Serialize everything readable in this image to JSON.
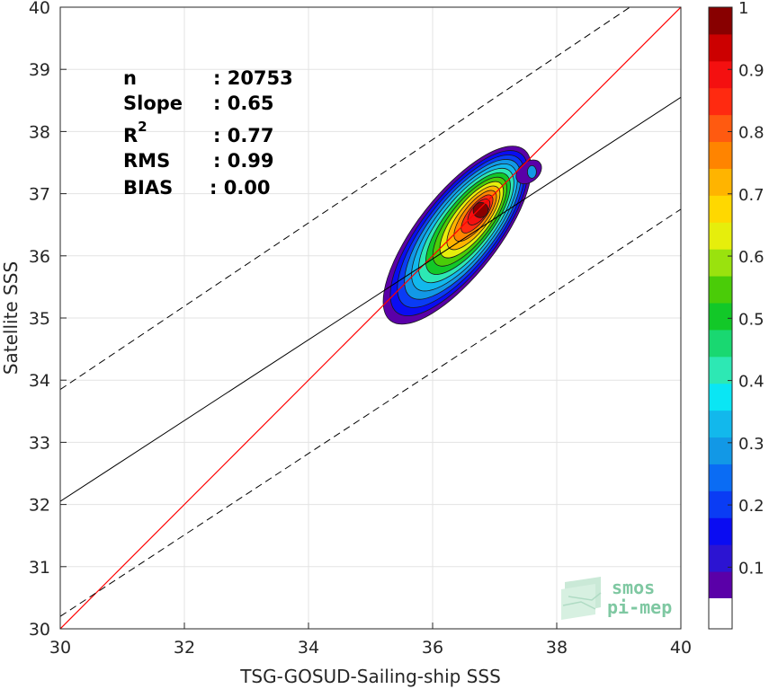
{
  "chart_data": {
    "type": "heatmap",
    "xlabel": "TSG-GOSUD-Sailing-ship SSS",
    "ylabel": "Satellite SSS",
    "xlim": [
      30,
      40
    ],
    "ylim": [
      30,
      40
    ],
    "xticks": [
      30,
      32,
      34,
      36,
      38,
      40
    ],
    "yticks": [
      30,
      31,
      32,
      33,
      34,
      35,
      36,
      37,
      38,
      39,
      40
    ],
    "grid": true,
    "stats": {
      "n": {
        "label": "n",
        "value": ": 20753"
      },
      "slope": {
        "label": "Slope",
        "value": ": 0.65"
      },
      "r2": {
        "label": "R",
        "sup": "2",
        "value": ": 0.77"
      },
      "rms": {
        "label": "RMS",
        "value": ": 0.99"
      },
      "bias": {
        "label": "BIAS",
        "value": ": 0.00"
      }
    },
    "density_center": [
      36.6,
      36.55
    ],
    "density_contour_levels": [
      0.05,
      0.1,
      0.2,
      0.3,
      0.4,
      0.5,
      0.6,
      0.7,
      0.8,
      0.9
    ],
    "lines": {
      "identity": {
        "slope": 1,
        "intercept": 0,
        "color": "#ff0000"
      },
      "regression": {
        "slope": 0.65,
        "points": [
          [
            30,
            32.05
          ],
          [
            40,
            38.55
          ]
        ],
        "color": "#000000"
      },
      "upper_dashed": {
        "points": [
          [
            30,
            33.85
          ],
          [
            40,
            40.55
          ]
        ],
        "style": "dashed"
      },
      "lower_dashed": {
        "points": [
          [
            30,
            30.2
          ],
          [
            40,
            36.75
          ]
        ],
        "style": "dashed"
      }
    },
    "colorbar": {
      "ticks": [
        "0.1",
        "0.2",
        "0.3",
        "0.4",
        "0.5",
        "0.6",
        "0.7",
        "0.8",
        "0.9",
        "1"
      ],
      "tick_values": [
        0.1,
        0.2,
        0.3,
        0.4,
        0.5,
        0.6,
        0.7,
        0.8,
        0.9,
        1.0
      ],
      "colors": [
        "#5a00a8",
        "#2c14d2",
        "#0a0cf2",
        "#0a3cf4",
        "#0a6cf4",
        "#1298e6",
        "#12b8ec",
        "#0ae6f4",
        "#2de8b4",
        "#19d871",
        "#12c828",
        "#4acc08",
        "#9ae20e",
        "#e6ee0c",
        "#ffd800",
        "#ffb400",
        "#ff8400",
        "#ff5a10",
        "#ff2a10",
        "#f41010",
        "#cc0000",
        "#880000"
      ]
    },
    "logo": {
      "line1": "smos",
      "line2": "pi-mep"
    }
  }
}
